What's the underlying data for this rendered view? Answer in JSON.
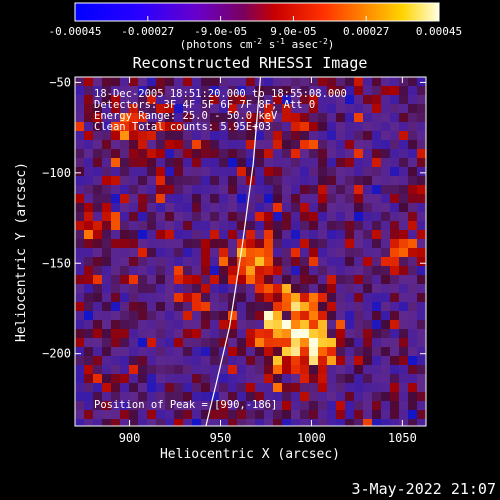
{
  "chart_data": {
    "type": "heatmap",
    "title": "Reconstructed RHESSI Image",
    "xlabel": "Heliocentric X (arcsec)",
    "ylabel": "Heliocentric Y (arcsec)",
    "xlim": [
      870,
      1063
    ],
    "ylim": [
      -240,
      -47
    ],
    "x_ticks": [
      900,
      950,
      1000,
      1050
    ],
    "y_ticks": [
      -50,
      -100,
      -150,
      -200
    ],
    "colorbar": {
      "range": [
        -0.00045,
        0.00045
      ],
      "tick_labels": [
        "-0.00045",
        "-0.00027",
        "-9.0e-05",
        "9.0e-05",
        "0.00027",
        "0.00045"
      ],
      "unit_text": "(photons cm",
      "unit_exp1": "-2",
      "unit_mid": " s",
      "unit_exp2": "-1",
      "unit_end": " asec",
      "unit_exp3": "-2",
      "unit_close": ")"
    },
    "annotations": [
      "18-Dec-2005 18:51:20.000 to 18:55:08.000",
      "Detectors: 3F 4F 5F 6F 7F 8F; Att 0",
      "Energy Range: 25.0 - 50.0 keV",
      "Clean    Total counts: 5.95E+03"
    ],
    "peak_label": "Position of Peak = [990,-186]",
    "peak": {
      "x": 990,
      "y": -186
    },
    "limb_curve": [
      [
        972,
        -47
      ],
      [
        968,
        -95
      ],
      [
        962,
        -140
      ],
      [
        955,
        -185
      ],
      [
        948,
        -215
      ],
      [
        942,
        -240
      ]
    ]
  },
  "timestamp": "3-May-2022 21:07"
}
